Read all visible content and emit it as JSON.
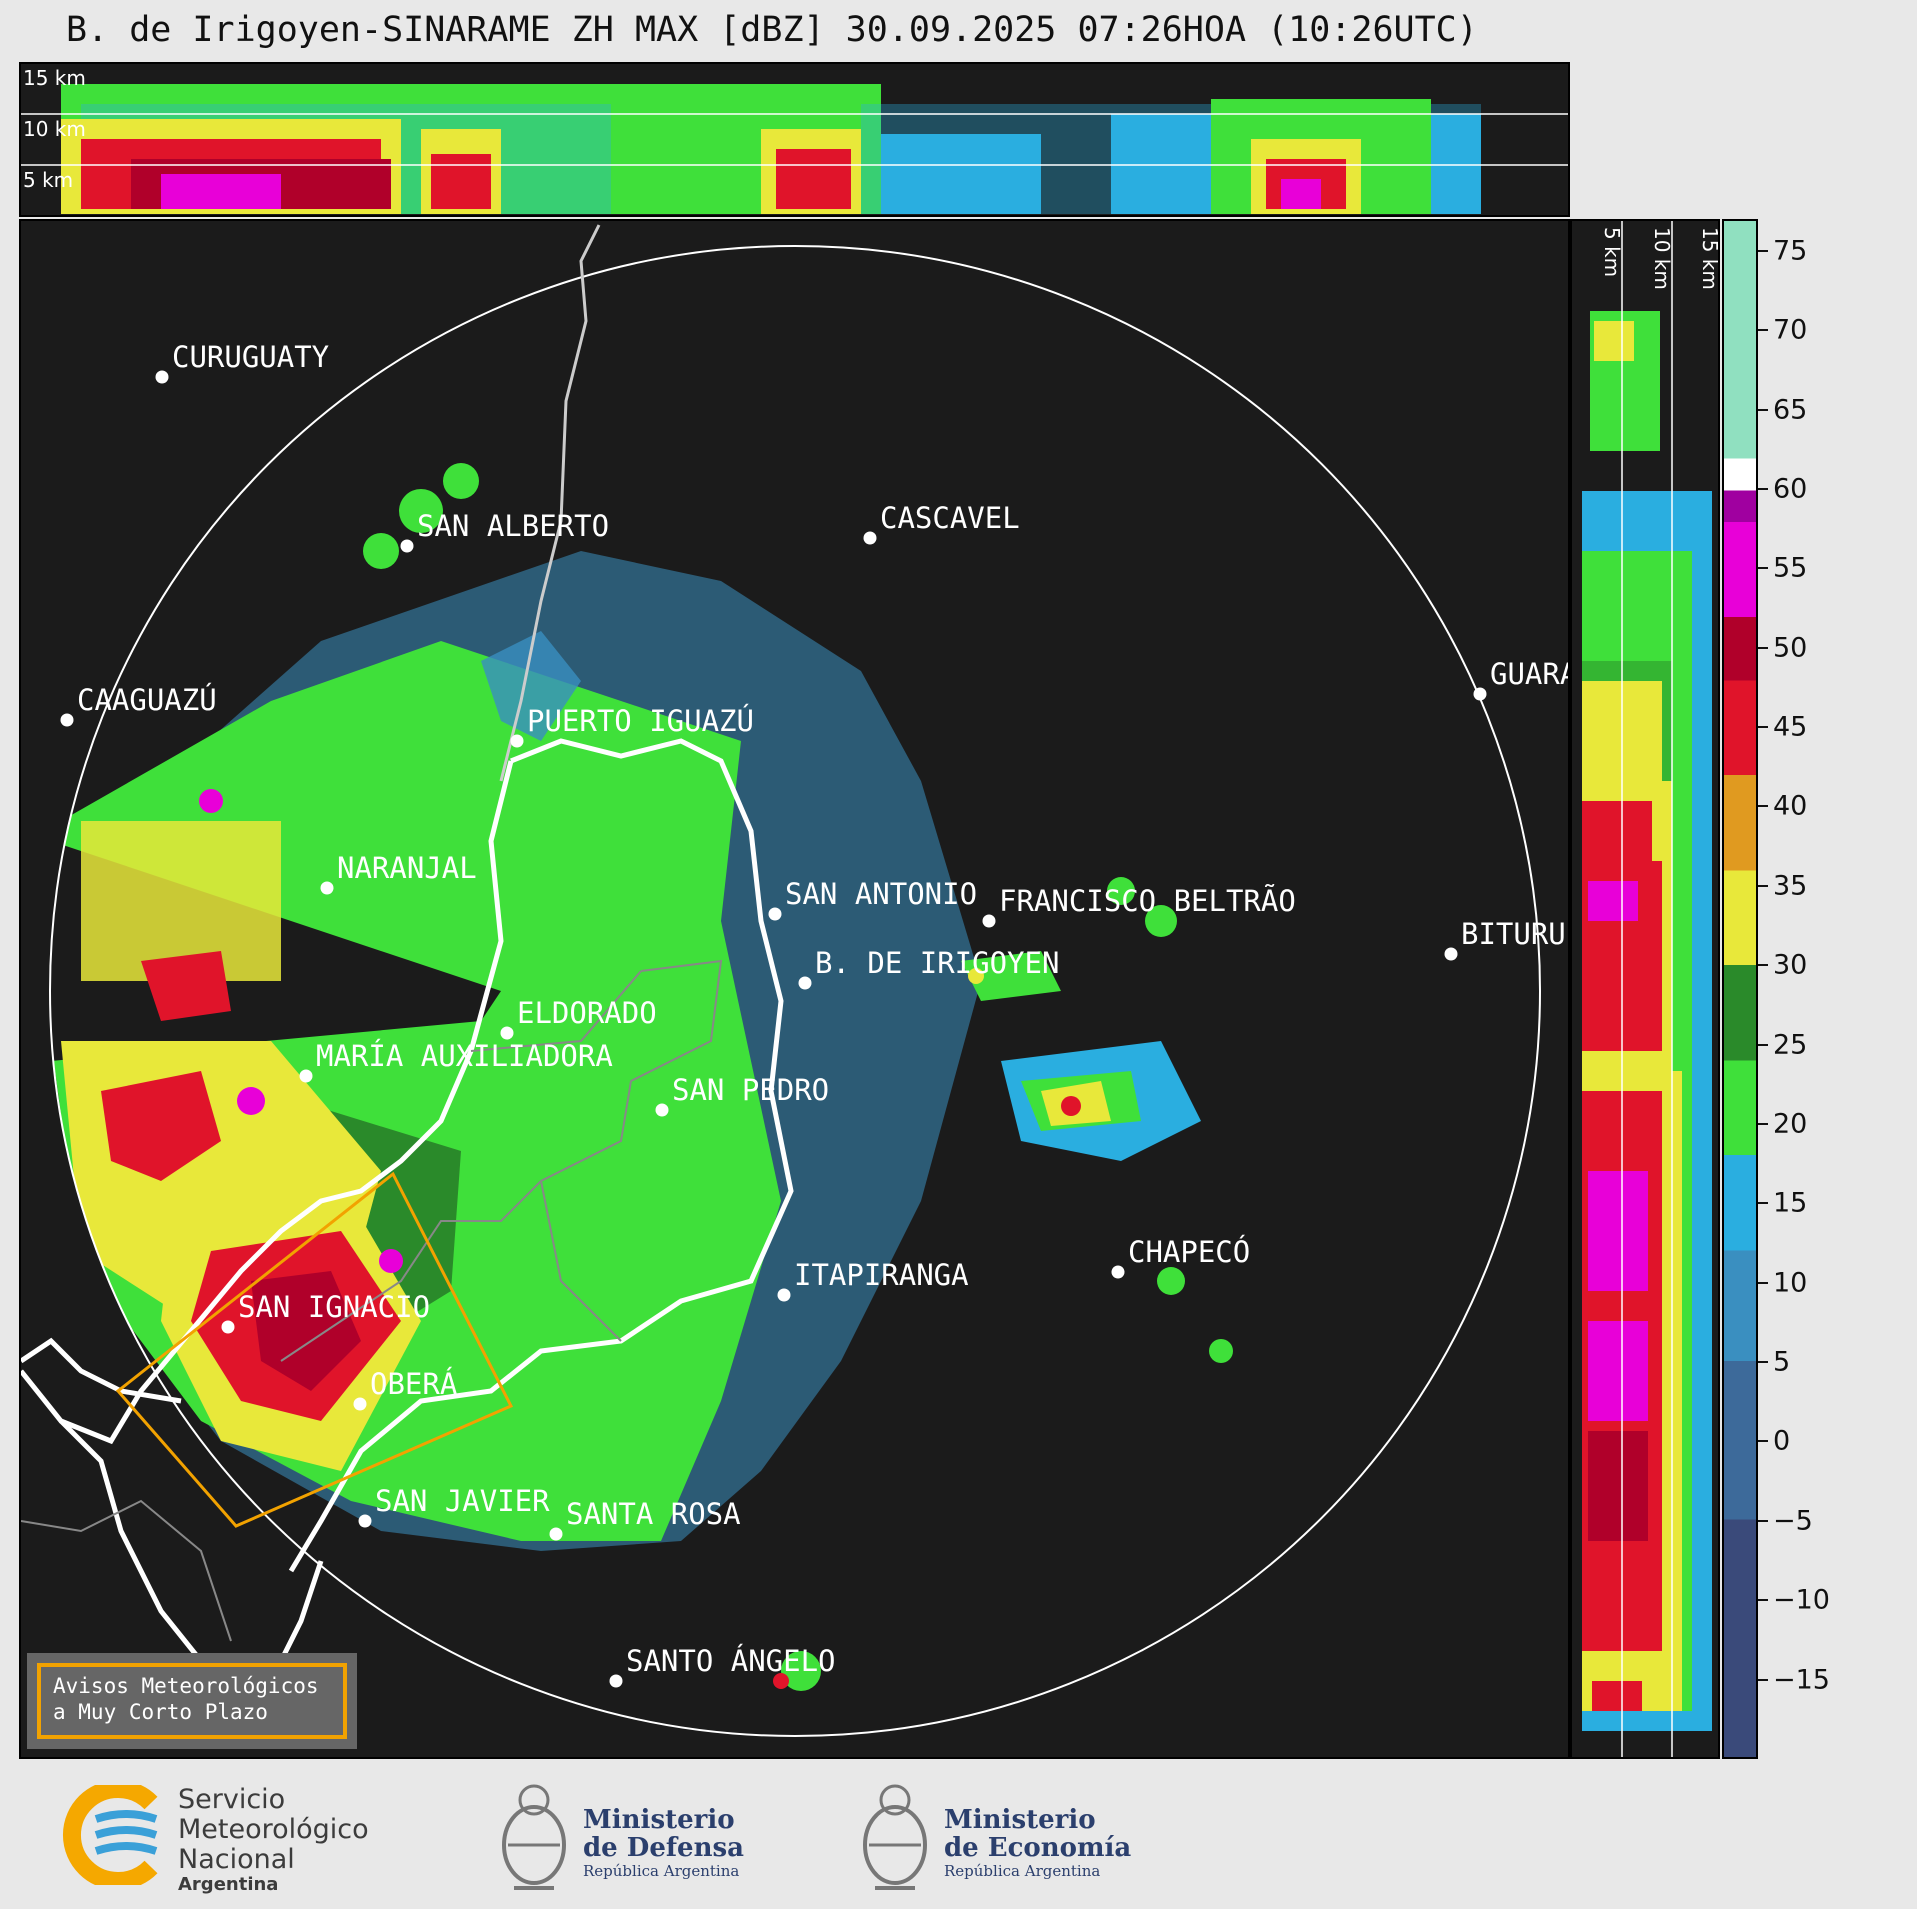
{
  "title": "B. de Irigoyen-SINARAME ZH MAX [dBZ] 30.09.2025 07:26HOA (10:26UTC)",
  "top_panel": {
    "height_labels": [
      "15 km",
      "10 km",
      "5 km"
    ]
  },
  "right_panel": {
    "height_labels": [
      "5 km",
      "10 km",
      "15 km"
    ]
  },
  "cities": [
    {
      "name": "CURUGUATY"
    },
    {
      "name": "SAN ALBERTO"
    },
    {
      "name": "CASCAVEL"
    },
    {
      "name": "CAAGUAZÚ"
    },
    {
      "name": "GUARA"
    },
    {
      "name": "PUERTO IGUAZÚ"
    },
    {
      "name": "NARANJAL"
    },
    {
      "name": "SAN ANTONIO"
    },
    {
      "name": "FRANCISCO BELTRÃO"
    },
    {
      "name": "BITURU"
    },
    {
      "name": "B. DE IRIGOYEN"
    },
    {
      "name": "ELDORADO"
    },
    {
      "name": "MARÍA AUXILIADORA"
    },
    {
      "name": "SAN PEDRO"
    },
    {
      "name": "CHAPECÓ"
    },
    {
      "name": "ITAPIRANGA"
    },
    {
      "name": "SAN IGNACIO"
    },
    {
      "name": "OBERÁ"
    },
    {
      "name": "SAN JAVIER"
    },
    {
      "name": "SANTA ROSA"
    },
    {
      "name": "SANTO ÁNGELO"
    }
  ],
  "warning_legend": {
    "line1": "Avisos Meteorológicos",
    "line2": "a Muy Corto Plazo",
    "color": "#f2a200"
  },
  "colorbar": {
    "unit": "dBZ",
    "range": [
      -20,
      77
    ],
    "tick_labels": [
      "75",
      "70",
      "65",
      "60",
      "55",
      "50",
      "45",
      "40",
      "35",
      "30",
      "25",
      "20",
      "15",
      "10",
      "5",
      "0",
      "−5",
      "−10",
      "−15"
    ],
    "tick_values": [
      75,
      70,
      65,
      60,
      55,
      50,
      45,
      40,
      35,
      30,
      25,
      20,
      15,
      10,
      5,
      0,
      -5,
      -10,
      -15
    ],
    "colors_by_range": [
      {
        "from": -20,
        "to": -5,
        "color": "#3a4a7a"
      },
      {
        "from": -5,
        "to": 5,
        "color": "#3d6a9a"
      },
      {
        "from": 5,
        "to": 12,
        "color": "#3a8fc0"
      },
      {
        "from": 12,
        "to": 18,
        "color": "#2aaee0"
      },
      {
        "from": 18,
        "to": 24,
        "color": "#3fe03a"
      },
      {
        "from": 24,
        "to": 30,
        "color": "#2a8a2a"
      },
      {
        "from": 30,
        "to": 36,
        "color": "#e8e83a"
      },
      {
        "from": 36,
        "to": 42,
        "color": "#e09a20"
      },
      {
        "from": 42,
        "to": 48,
        "color": "#e0142a"
      },
      {
        "from": 48,
        "to": 52,
        "color": "#b0002a"
      },
      {
        "from": 52,
        "to": 58,
        "color": "#e800d8"
      },
      {
        "from": 58,
        "to": 60,
        "color": "#a000a0"
      },
      {
        "from": 60,
        "to": 62,
        "color": "#ffffff"
      },
      {
        "from": 62,
        "to": 77,
        "color": "#90e0c0"
      }
    ]
  },
  "logos": {
    "smn": {
      "line1": "Servicio",
      "line2": "Meteorológico",
      "line3": "Nacional",
      "line4": "Argentina"
    },
    "defensa": {
      "line1": "Ministerio",
      "line2": "de Defensa",
      "line3": "República Argentina"
    },
    "economia": {
      "line1": "Ministerio",
      "line2": "de Economía",
      "line3": "República Argentina"
    }
  }
}
